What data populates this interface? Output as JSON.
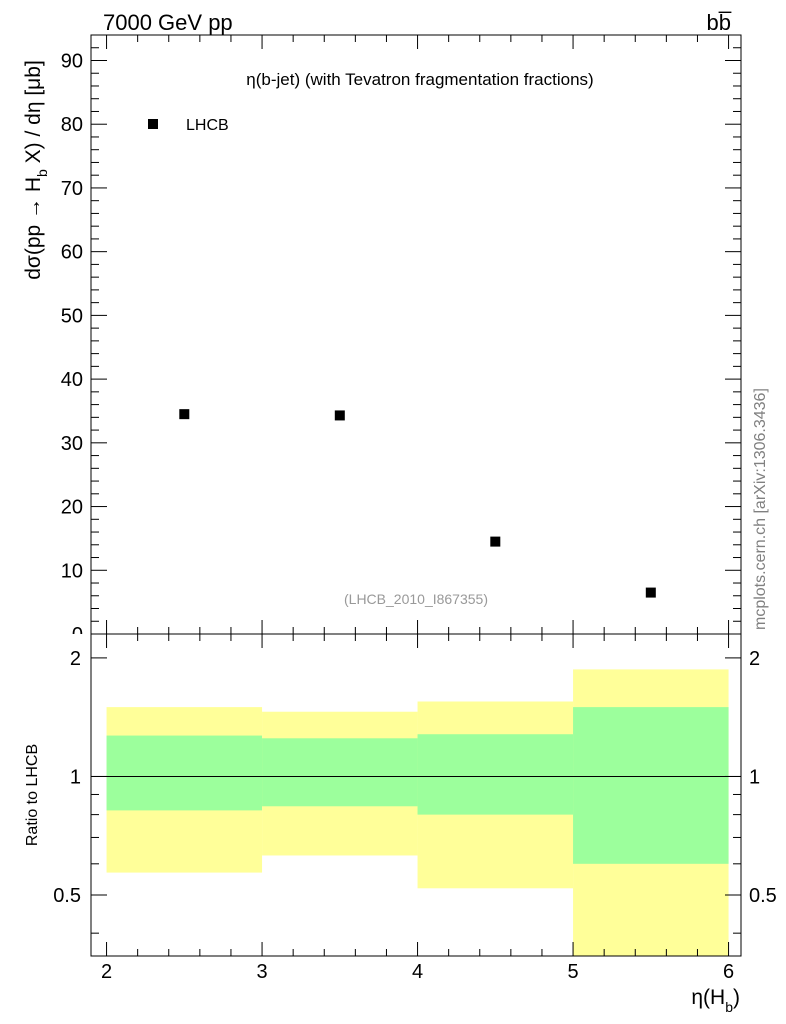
{
  "header": {
    "energy_label": "7000 GeV pp",
    "process_label": "bb̅",
    "watermark": "mcplots.cern.ch [arXiv:1306.3436]"
  },
  "chart_data": [
    {
      "type": "scatter",
      "title": "η(b-jet) (with Tevatron fragmentation fractions)",
      "ylabel": "dσ(pp → H_b X) / dη [μb]",
      "xlabel": "",
      "annotation": "(LHCB_2010_I867355)",
      "legend_position": "top-left",
      "xlim": [
        1.9,
        6.08
      ],
      "ylim": [
        0,
        94
      ],
      "yticks": [
        10,
        20,
        30,
        40,
        50,
        60,
        70,
        80,
        90
      ],
      "ytick_labels": [
        "10",
        "20",
        "30",
        "40",
        "50",
        "60",
        "70",
        "80",
        "90"
      ],
      "partial_tick_label": "0",
      "series": [
        {
          "name": "LHCB",
          "x": [
            2.5,
            3.5,
            4.5,
            5.5
          ],
          "y": [
            34.5,
            34.3,
            14.5,
            6.5
          ]
        }
      ],
      "grid": false
    },
    {
      "type": "area",
      "ylabel": "Ratio to LHCB",
      "xlabel": "η(H_b)",
      "xlim": [
        1.9,
        6.08
      ],
      "ylim": [
        0.35,
        2.3
      ],
      "y_scale": "log",
      "yticks": [
        0.5,
        1,
        2
      ],
      "ytick_labels": [
        "0.5",
        "1",
        "2"
      ],
      "xticks": [
        2,
        3,
        4,
        5,
        6
      ],
      "xtick_labels": [
        "2",
        "3",
        "4",
        "5",
        "6"
      ],
      "reference_line": 1,
      "bins": [
        {
          "x_low": 2,
          "x_high": 3,
          "inner": [
            0.82,
            1.27
          ],
          "outer": [
            0.57,
            1.5
          ]
        },
        {
          "x_low": 3,
          "x_high": 4,
          "inner": [
            0.84,
            1.25
          ],
          "outer": [
            0.63,
            1.46
          ]
        },
        {
          "x_low": 4,
          "x_high": 5,
          "inner": [
            0.8,
            1.28
          ],
          "outer": [
            0.52,
            1.55
          ]
        },
        {
          "x_low": 5,
          "x_high": 6,
          "inner": [
            0.6,
            1.5
          ],
          "outer": [
            0.35,
            1.87
          ]
        }
      ],
      "colors": {
        "inner_band": "#9cff9c",
        "outer_band": "#ffff99"
      }
    }
  ]
}
